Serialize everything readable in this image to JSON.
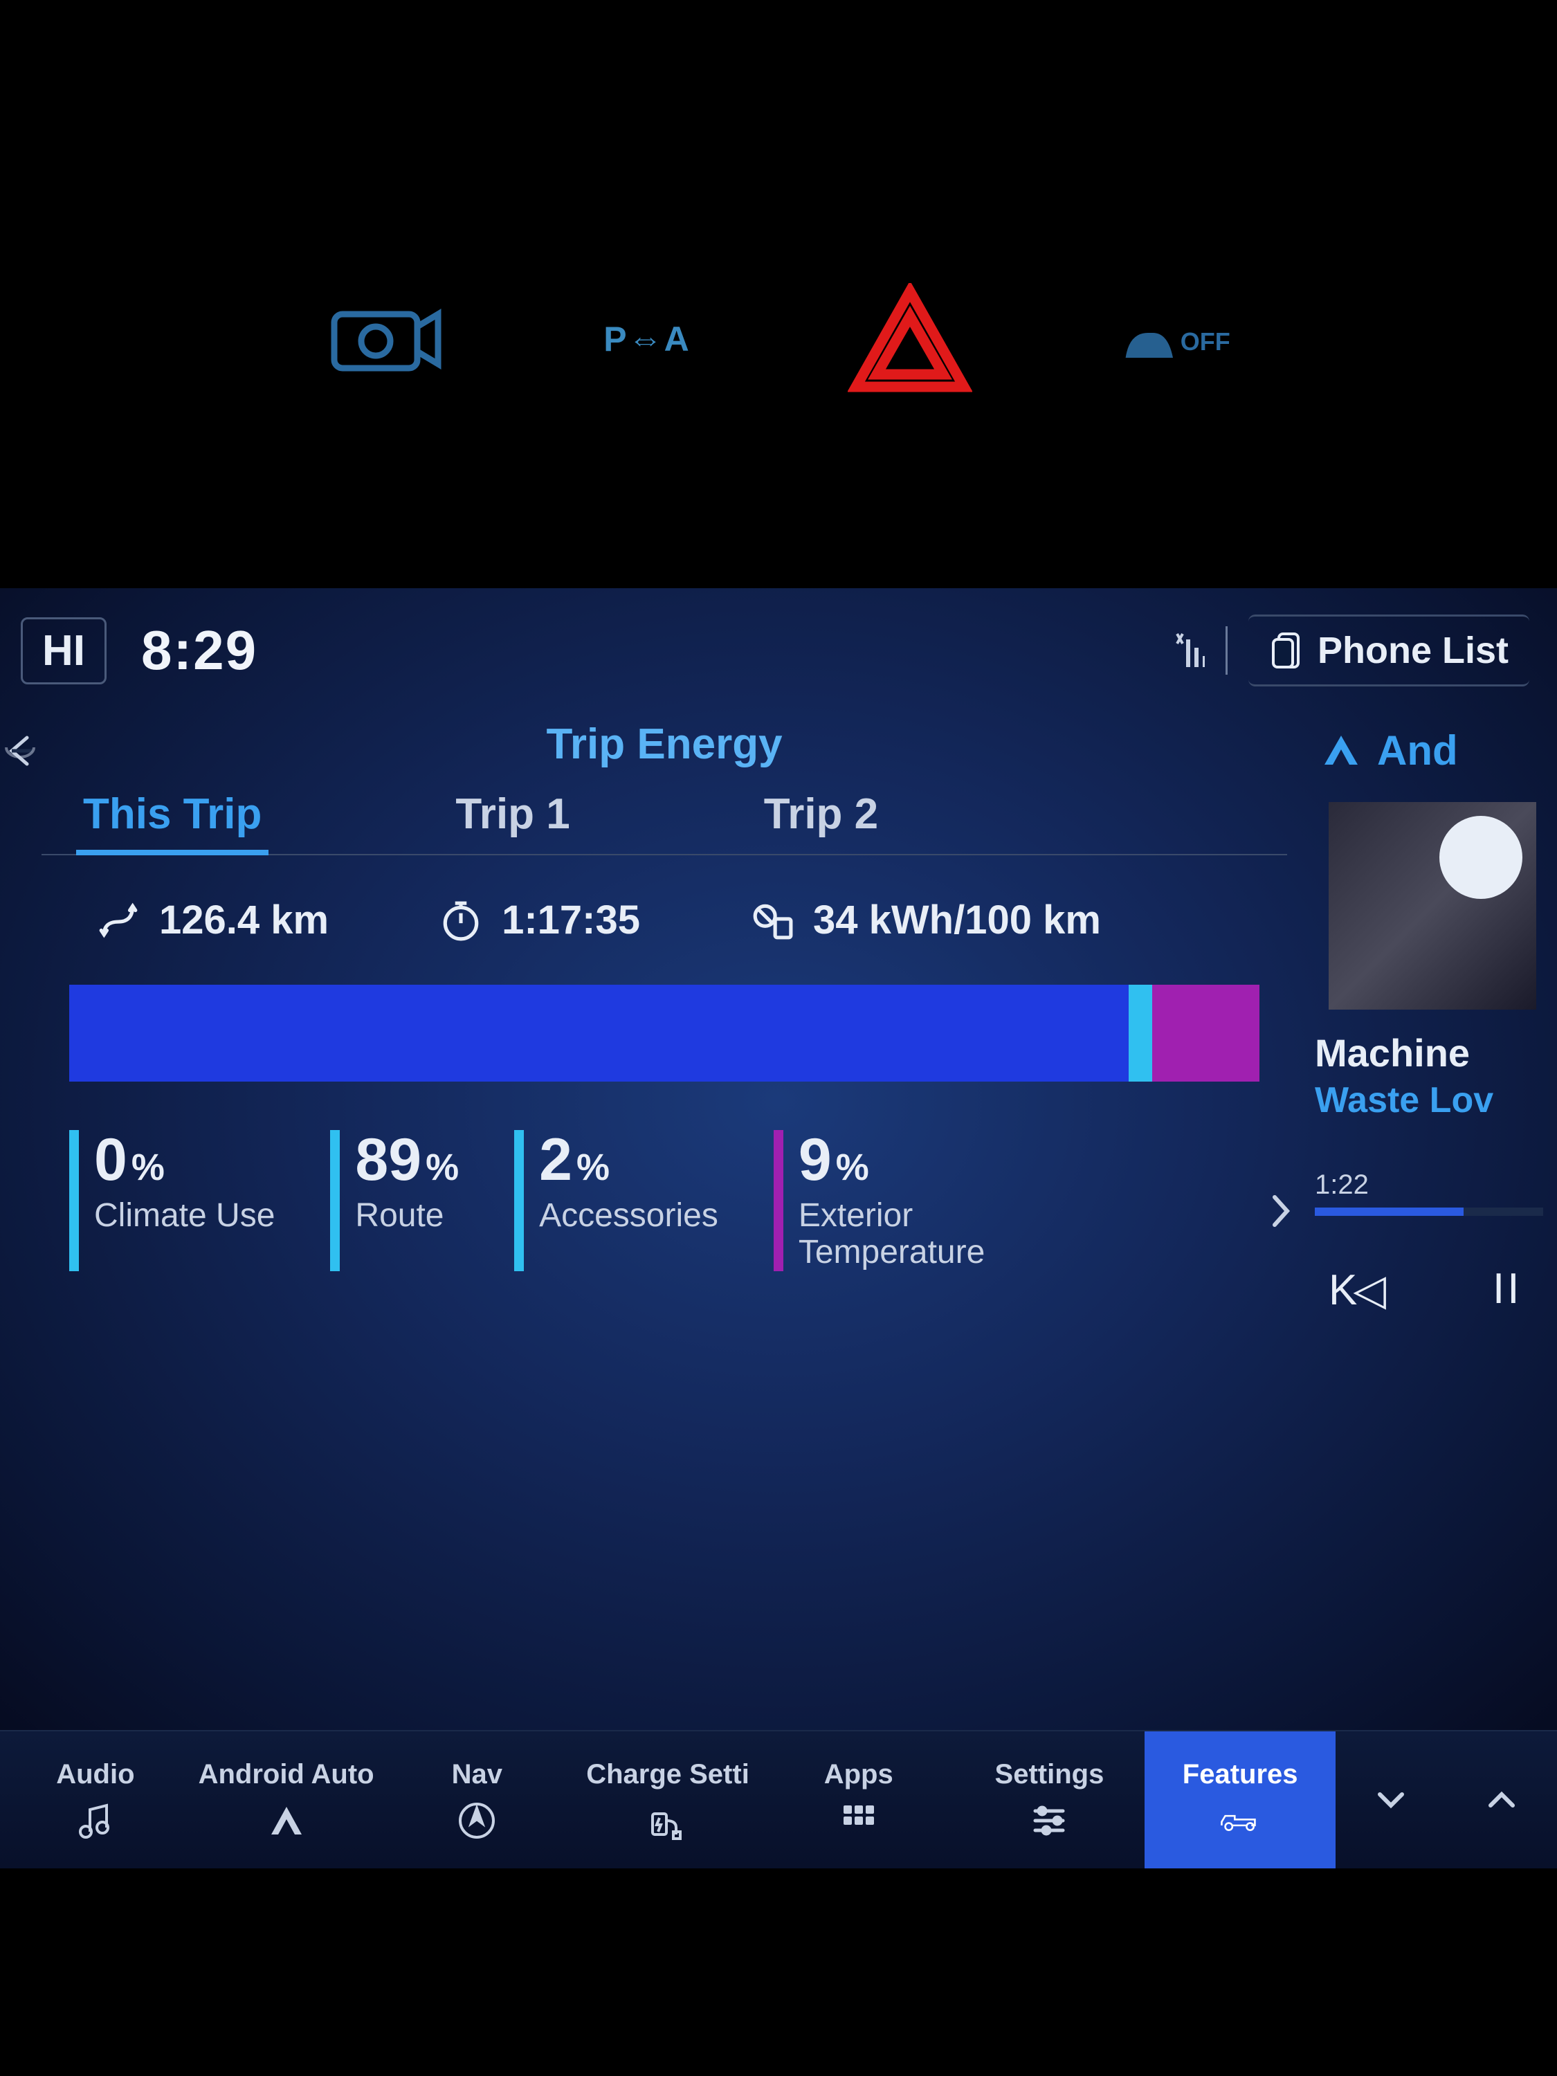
{
  "dashboard_buttons": {
    "camera_color": "#2a6aa0",
    "parkassist_label": "P⇔A",
    "parkassist_color": "#3a8ac0",
    "hazard_color": "#e01a1a",
    "traction_label": "OFF",
    "traction_color": "#2a6aa0"
  },
  "topbar": {
    "climate_temp": "HI",
    "time": "8:29",
    "phone_list_label": "Phone List"
  },
  "section": {
    "title": "Trip Energy"
  },
  "tabs": {
    "this_trip": "This Trip",
    "trip1": "Trip 1",
    "trip2": "Trip 2",
    "active": "this_trip"
  },
  "stats": {
    "distance": "126.4 km",
    "duration": "1:17:35",
    "efficiency": "34 kWh/100 km"
  },
  "energy_bar": {
    "segments": [
      {
        "key": "climate",
        "pct": 0,
        "color": "#2a6ae0"
      },
      {
        "key": "route",
        "pct": 89,
        "color": "#1f3ae0"
      },
      {
        "key": "acc",
        "pct": 2,
        "color": "#30c0f0"
      },
      {
        "key": "ext",
        "pct": 9,
        "color": "#a020b0"
      }
    ]
  },
  "breakdown": {
    "climate": {
      "value": "0",
      "unit": "%",
      "label": "Climate Use",
      "color": "#30c0f0"
    },
    "route": {
      "value": "89",
      "unit": "%",
      "label": "Route",
      "color": "#30c0f0"
    },
    "acc": {
      "value": "2",
      "unit": "%",
      "label": "Accessories",
      "color": "#30c0f0"
    },
    "ext": {
      "value": "9",
      "unit": "%",
      "label": "Exterior\nTemperature",
      "color": "#a020b0"
    }
  },
  "side": {
    "app_label": "And",
    "song_title": "Machine",
    "song_artist": "Waste Lov",
    "song_time": "1:22",
    "progress_pct": 65,
    "prev_glyph": "K◁",
    "pause_glyph": "II"
  },
  "nav": {
    "audio": {
      "label": "Audio"
    },
    "android": {
      "label": "Android Auto"
    },
    "navi": {
      "label": "Nav"
    },
    "charge": {
      "label": "Charge Setti"
    },
    "apps": {
      "label": "Apps"
    },
    "settings": {
      "label": "Settings"
    },
    "features": {
      "label": "Features"
    },
    "active": "features"
  },
  "colors": {
    "accent": "#3aa0f0",
    "text": "#e8eef7",
    "text_dim": "#c8d2e4",
    "bg_deep": "#060b20"
  }
}
